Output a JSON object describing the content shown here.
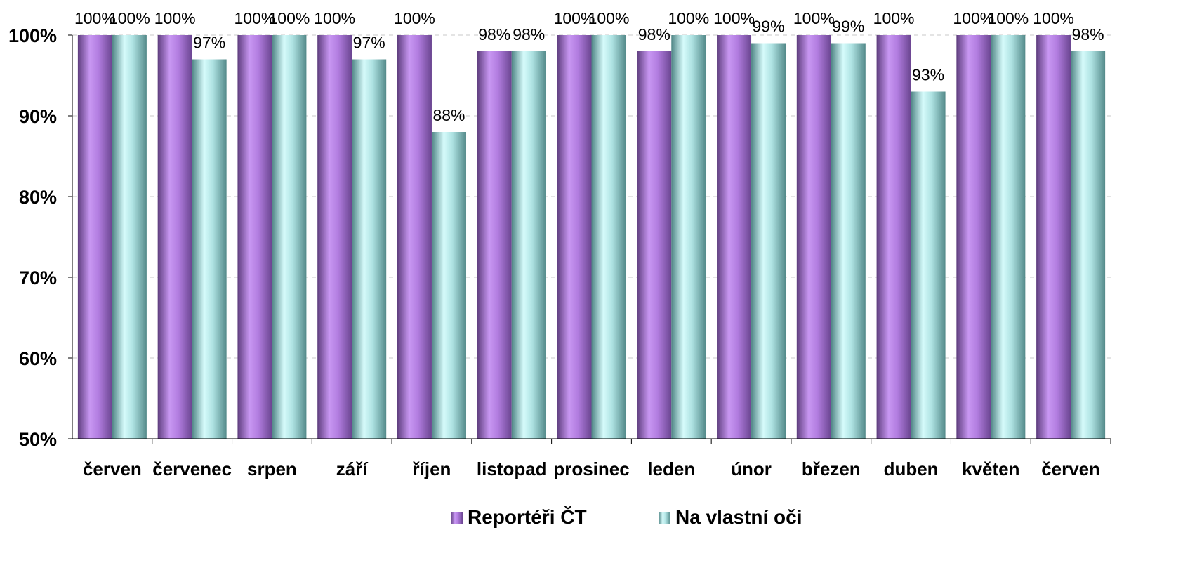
{
  "chart_data": {
    "type": "bar",
    "title": "",
    "xlabel": "",
    "ylabel": "",
    "ylim": [
      50,
      100
    ],
    "y_unit": "%",
    "yticks": [
      50,
      60,
      70,
      80,
      90,
      100
    ],
    "ytick_labels": [
      "50%",
      "60%",
      "70%",
      "80%",
      "90%",
      "100%"
    ],
    "grid": "horizontal dashed",
    "legend_position": "bottom",
    "categories": [
      "červen",
      "červenec",
      "srpen",
      "září",
      "říjen",
      "listopad",
      "prosinec",
      "leden",
      "únor",
      "březen",
      "duben",
      "květen",
      "červen"
    ],
    "series": [
      {
        "name": "Reportéři ČT",
        "color": "#b47be0",
        "values": [
          100,
          100,
          100,
          100,
          100,
          98,
          100,
          98,
          100,
          100,
          100,
          100,
          100
        ],
        "labels": [
          "100%",
          "100%",
          "100%",
          "100%",
          "100%",
          "98%",
          "100%",
          "98%",
          "100%",
          "100%",
          "100%",
          "100%",
          "100%"
        ]
      },
      {
        "name": "Na vlastní oči",
        "color": "#8fd3d3",
        "values": [
          100,
          97,
          100,
          97,
          88,
          98,
          100,
          100,
          99,
          99,
          93,
          100,
          98
        ],
        "labels": [
          "100%",
          "97%",
          "100%",
          "97%",
          "88%",
          "98%",
          "100%",
          "100%",
          "99%",
          "99%",
          "93%",
          "100%",
          "98%"
        ]
      }
    ]
  }
}
